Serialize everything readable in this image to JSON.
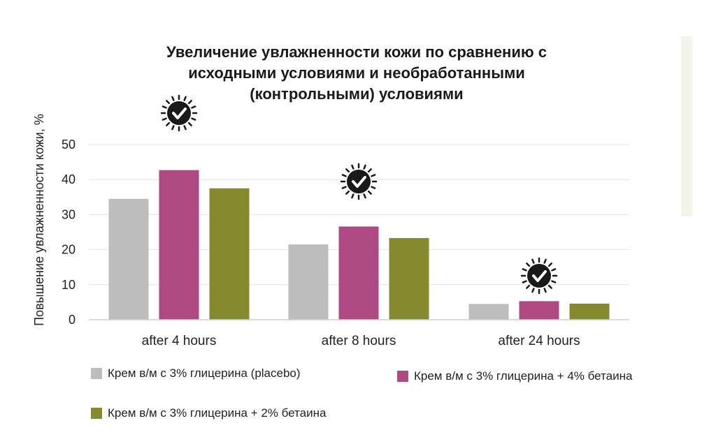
{
  "chart_data": {
    "type": "bar",
    "title_lines": [
      "Увеличение увлажненности кожи по сравнению с",
      "исходными условиями и необработанными",
      "(контрольными) условиями"
    ],
    "ylabel": "Повышение увлажненности кожи, %",
    "xlabel": "",
    "ylim": [
      0,
      50
    ],
    "yticks": [
      0,
      10,
      20,
      30,
      40,
      50
    ],
    "grid": true,
    "categories": [
      "after 4 hours",
      "after 8 hours",
      "after 24 hours"
    ],
    "series": [
      {
        "name": "Крем в/м с 3% глицерина (placebo)",
        "color": "#bdbdbd",
        "values": [
          34.5,
          21.5,
          4.5
        ]
      },
      {
        "name": "Крем в/м с 3% глицерина + 4% бетаина",
        "color": "#ae4982",
        "values": [
          42.7,
          26.6,
          5.3
        ]
      },
      {
        "name": "Крем в/м с 3% глицерина + 2% бетаина",
        "color": "#868a2e",
        "values": [
          37.5,
          23.3,
          4.6
        ]
      }
    ],
    "annotations": [
      {
        "category": "after 4 hours",
        "icon": "checkmark-badge-icon"
      },
      {
        "category": "after 8 hours",
        "icon": "checkmark-badge-icon"
      },
      {
        "category": "after 24 hours",
        "icon": "checkmark-badge-icon"
      }
    ],
    "legend_position": "bottom"
  }
}
